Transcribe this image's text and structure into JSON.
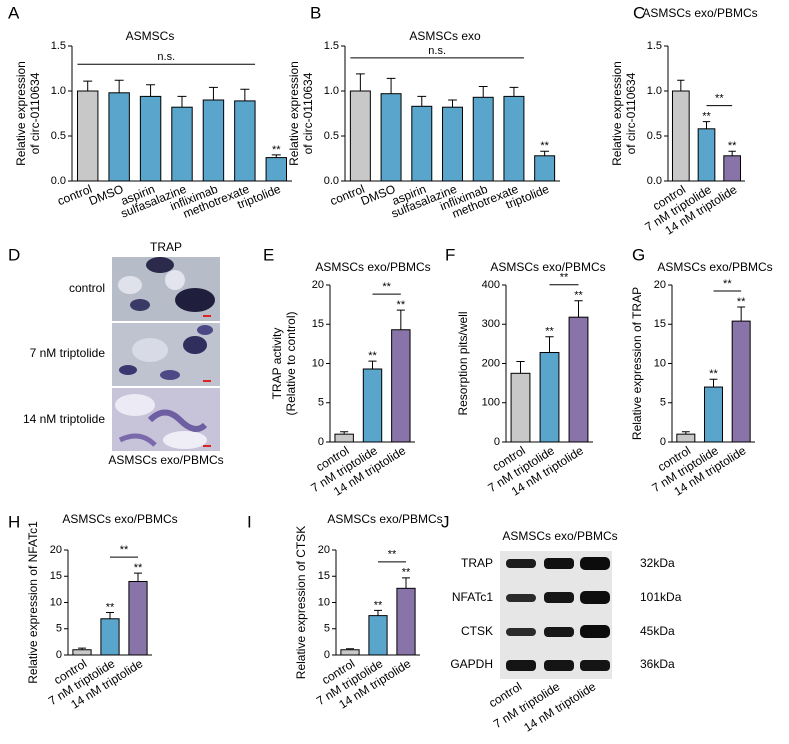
{
  "chart_data": [
    {
      "panel": "A",
      "type": "bar",
      "title": "ASMSCs",
      "ylabel": [
        "Relative expression",
        "of circ-0110634"
      ],
      "categories": [
        "control",
        "DMSO",
        "aspirin",
        "sulfasalazine",
        "infliximab",
        "methotrexate",
        "triptolide"
      ],
      "values": [
        1.0,
        0.98,
        0.94,
        0.82,
        0.9,
        0.89,
        0.26
      ],
      "errors": [
        0.11,
        0.14,
        0.13,
        0.12,
        0.14,
        0.13,
        0.03
      ],
      "colors": [
        "#c8c8c8",
        "#5aa5cb",
        "#5aa5cb",
        "#5aa5cb",
        "#5aa5cb",
        "#5aa5cb",
        "#5aa5cb"
      ],
      "significance": [
        null,
        null,
        null,
        null,
        null,
        null,
        "**"
      ],
      "comparison": {
        "label": "n.s.",
        "categories": [
          "control",
          "methotrexate"
        ]
      },
      "ylim": [
        0,
        1.5
      ],
      "yticks": [
        {
          "value": 0,
          "label": "0.0"
        },
        0.5,
        {
          "value": 1,
          "label": "1.0"
        },
        1.5
      ]
    },
    {
      "panel": "B",
      "type": "bar",
      "title": "ASMSCs exo",
      "ylabel": [
        "Relative expression",
        "of circ-0110634"
      ],
      "categories": [
        "control",
        "DMSO",
        "aspirin",
        "sulfasalazine",
        "infliximab",
        "methotrexate",
        "triptolide"
      ],
      "values": [
        1.0,
        0.97,
        0.83,
        0.82,
        0.93,
        0.94,
        0.28
      ],
      "errors": [
        0.19,
        0.17,
        0.11,
        0.08,
        0.12,
        0.1,
        0.05
      ],
      "colors": [
        "#c8c8c8",
        "#5aa5cb",
        "#5aa5cb",
        "#5aa5cb",
        "#5aa5cb",
        "#5aa5cb",
        "#5aa5cb"
      ],
      "significance": [
        null,
        null,
        null,
        null,
        null,
        null,
        "**"
      ],
      "comparison": {
        "label": "n.s.",
        "categories": [
          "control",
          "methotrexate"
        ]
      },
      "ylim": [
        0,
        1.5
      ],
      "yticks": [
        {
          "value": 0,
          "label": "0.0"
        },
        0.5,
        {
          "value": 1,
          "label": "1.0"
        },
        1.5
      ]
    },
    {
      "panel": "C",
      "type": "bar",
      "title": "ASMSCs exo/PBMCs",
      "ylabel": [
        "Relative expression",
        "of circ-0110634"
      ],
      "categories": [
        "control",
        "7 nM triptolide",
        "14 nM triptolide"
      ],
      "values": [
        1.0,
        0.58,
        0.28
      ],
      "errors": [
        0.12,
        0.08,
        0.05
      ],
      "colors": [
        "#c8c8c8",
        "#5aa5cb",
        "#8874a8"
      ],
      "significance": [
        null,
        "**",
        "**"
      ],
      "comparison": {
        "label": "**",
        "categories": [
          "7 nM triptolide",
          "14 nM triptolide"
        ]
      },
      "ylim": [
        0,
        1.5
      ],
      "yticks": [
        {
          "value": 0,
          "label": "0.0"
        },
        0.5,
        {
          "value": 1,
          "label": "1.0"
        },
        1.5
      ]
    },
    {
      "panel": "E",
      "type": "bar",
      "title": "ASMSCs exo/PBMCs",
      "ylabel": [
        "TRAP activity",
        "(Relative to control)"
      ],
      "categories": [
        "control",
        "7 nM triptolide",
        "14 nM triptolide"
      ],
      "values": [
        1.0,
        9.3,
        14.3
      ],
      "errors": [
        0.3,
        1.0,
        2.5
      ],
      "colors": [
        "#c8c8c8",
        "#5aa5cb",
        "#8874a8"
      ],
      "significance": [
        null,
        "**",
        "**"
      ],
      "comparison": {
        "label": "**",
        "categories": [
          "7 nM triptolide",
          "14 nM triptolide"
        ]
      },
      "ylim": [
        0,
        20
      ],
      "yticks": [
        0,
        5,
        10,
        15,
        20
      ]
    },
    {
      "panel": "F",
      "type": "bar",
      "title": "ASMSCs exo/PBMCs",
      "ylabel": [
        "Resorption pits/well"
      ],
      "categories": [
        "control",
        "7 nM triptolide",
        "14 nM triptolide"
      ],
      "values": [
        175,
        228,
        318
      ],
      "errors": [
        30,
        40,
        42
      ],
      "colors": [
        "#c8c8c8",
        "#5aa5cb",
        "#8874a8"
      ],
      "significance": [
        null,
        "**",
        "**"
      ],
      "comparison": {
        "label": "**",
        "categories": [
          "7 nM triptolide",
          "14 nM triptolide"
        ]
      },
      "ylim": [
        0,
        400
      ],
      "yticks": [
        0,
        100,
        200,
        300,
        400
      ]
    },
    {
      "panel": "G",
      "type": "bar",
      "title": "ASMSCs exo/PBMCs",
      "ylabel": [
        "Relative expression of TRAP"
      ],
      "categories": [
        "control",
        "7 nM triptolide",
        "14 nM triptolide"
      ],
      "values": [
        1.0,
        7.0,
        15.4
      ],
      "errors": [
        0.3,
        1.0,
        1.8
      ],
      "colors": [
        "#c8c8c8",
        "#5aa5cb",
        "#8874a8"
      ],
      "significance": [
        null,
        "**",
        "**"
      ],
      "comparison": {
        "label": "**",
        "categories": [
          "7 nM triptolide",
          "14 nM triptolide"
        ]
      },
      "ylim": [
        0,
        20
      ],
      "yticks": [
        0,
        5,
        10,
        15,
        20
      ]
    },
    {
      "panel": "H",
      "type": "bar",
      "title": "ASMSCs exo/PBMCs",
      "ylabel": [
        "Relative expression of NFATc1"
      ],
      "categories": [
        "control",
        "7 nM triptolide",
        "14 nM triptolide"
      ],
      "values": [
        1.0,
        6.9,
        14.0
      ],
      "errors": [
        0.3,
        1.2,
        1.6
      ],
      "colors": [
        "#c8c8c8",
        "#5aa5cb",
        "#8874a8"
      ],
      "significance": [
        null,
        "**",
        "**"
      ],
      "comparison": {
        "label": "**",
        "categories": [
          "7 nM triptolide",
          "14 nM triptolide"
        ]
      },
      "ylim": [
        0,
        20
      ],
      "yticks": [
        0,
        5,
        10,
        15,
        20
      ]
    },
    {
      "panel": "I",
      "type": "bar",
      "title": "ASMSCs exo/PBMCs",
      "ylabel": [
        "Relative expression of CTSK"
      ],
      "categories": [
        "control",
        "7 nM triptolide",
        "14 nM triptolide"
      ],
      "values": [
        1.0,
        7.5,
        12.7
      ],
      "errors": [
        0.2,
        1.0,
        2.0
      ],
      "colors": [
        "#c8c8c8",
        "#5aa5cb",
        "#8874a8"
      ],
      "significance": [
        null,
        "**",
        "**"
      ],
      "comparison": {
        "label": "**",
        "categories": [
          "7 nM triptolide",
          "14 nM triptolide"
        ]
      },
      "ylim": [
        0,
        20
      ],
      "yticks": [
        0,
        5,
        10,
        15,
        20
      ]
    }
  ],
  "image_panel": {
    "panel": "D",
    "title": "TRAP",
    "rows": [
      "control",
      "7 nM triptolide",
      "14 nM triptolide"
    ],
    "caption": "ASMSCs exo/PBMCs"
  },
  "blot_panel": {
    "panel": "J",
    "title": "ASMSCs exo/PBMCs",
    "proteins": [
      {
        "name": "TRAP",
        "size": "32kDa"
      },
      {
        "name": "NFATc1",
        "size": "101kDa"
      },
      {
        "name": "CTSK",
        "size": "45kDa"
      },
      {
        "name": "GAPDH",
        "size": "36kDa"
      }
    ],
    "lanes": [
      "control",
      "7 nM triptolide",
      "14 nM triptolide"
    ]
  }
}
